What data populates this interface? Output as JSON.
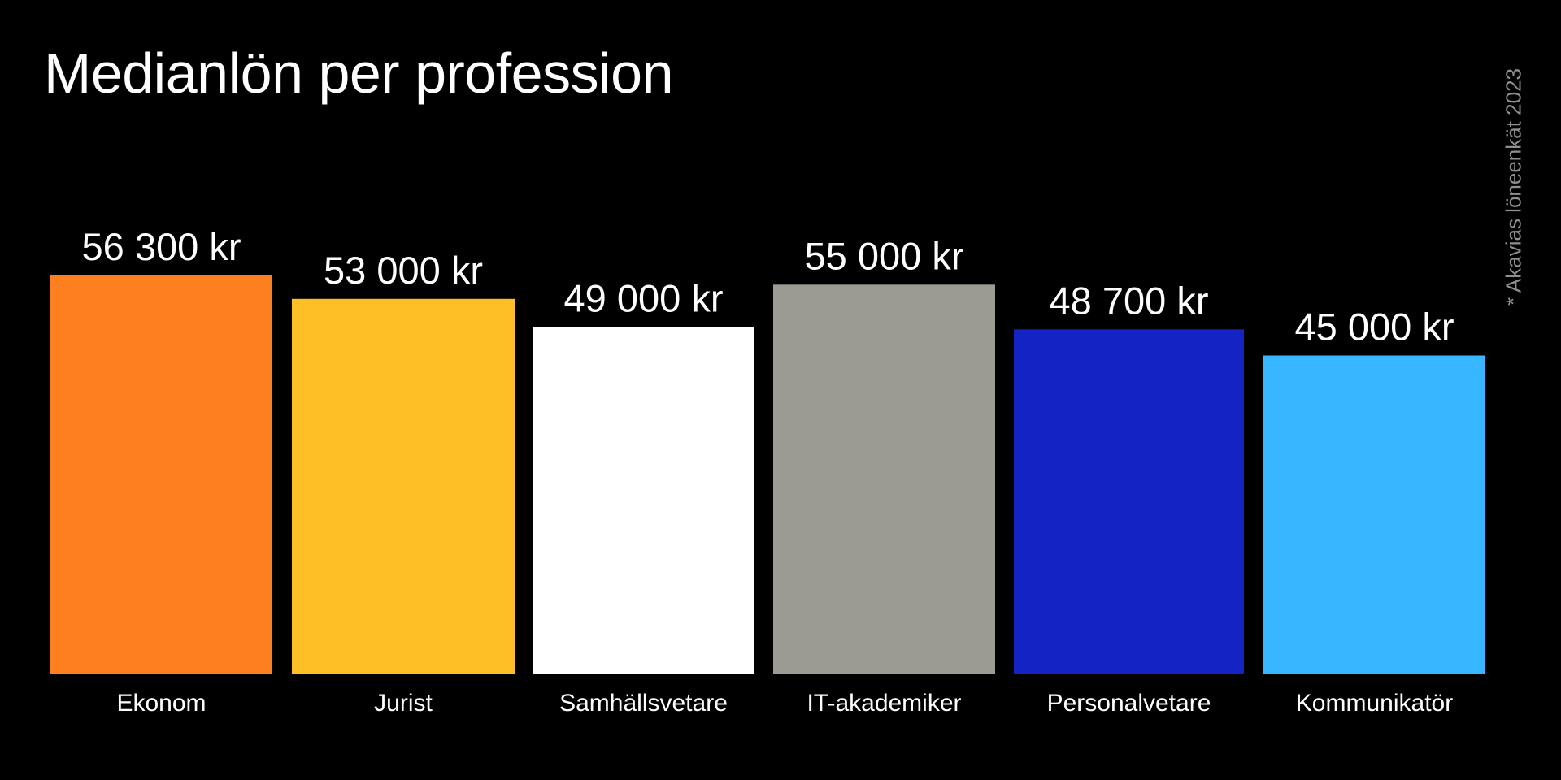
{
  "chart_data": {
    "type": "bar",
    "title": "Medianlön per profession",
    "note": "* Akavias löneenkät 2023",
    "categories": [
      "Ekonom",
      "Jurist",
      "Samhällsvetare",
      "IT-akademiker",
      "Personalvetare",
      "Kommunikatör"
    ],
    "values": [
      56300,
      53000,
      49000,
      55000,
      48700,
      45000
    ],
    "value_labels": [
      "56 300 kr",
      "53 000 kr",
      "49 000 kr",
      "55 000 kr",
      "48 700 kr",
      "45 000 kr"
    ],
    "colors": [
      "#FD7F20",
      "#FEBE26",
      "#FFFFFF",
      "#9B9B93",
      "#1424C4",
      "#38B6FF"
    ],
    "grid": false,
    "legend": "none"
  }
}
